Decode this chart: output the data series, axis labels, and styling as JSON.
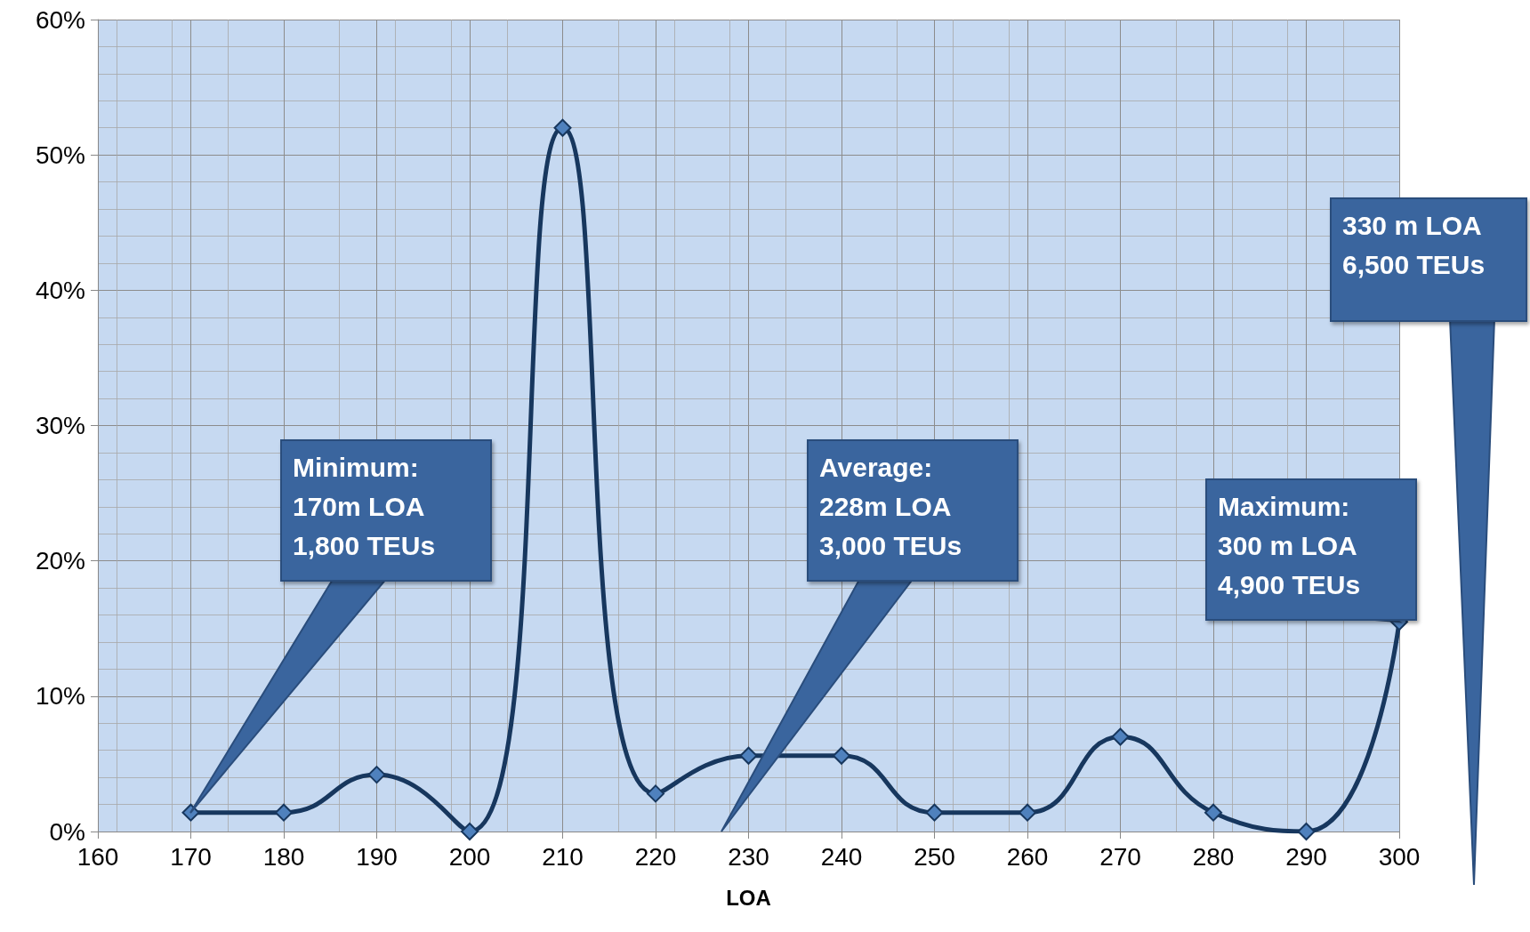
{
  "chart_data": {
    "type": "line",
    "xlabel": "LOA",
    "x": [
      170,
      180,
      190,
      200,
      210,
      220,
      230,
      240,
      250,
      260,
      270,
      280,
      290,
      300
    ],
    "series": [
      {
        "color": "#17375e",
        "values": [
          1.4,
          1.4,
          4.2,
          0,
          52,
          2.8,
          5.6,
          5.6,
          1.4,
          1.4,
          7,
          1.4,
          0,
          15.5
        ]
      }
    ],
    "xlim": [
      160,
      300
    ],
    "xticks": [
      160,
      170,
      180,
      190,
      200,
      210,
      220,
      230,
      240,
      250,
      260,
      270,
      280,
      290,
      300
    ],
    "ylim": [
      0,
      60
    ],
    "yticks": [
      {
        "value": 0,
        "label": "0%"
      },
      {
        "value": 10,
        "label": "10%"
      },
      {
        "value": 20,
        "label": "20%"
      },
      {
        "value": 30,
        "label": "30%"
      },
      {
        "value": 40,
        "label": "40%"
      },
      {
        "value": 50,
        "label": "50%"
      },
      {
        "value": 60,
        "label": "60%"
      }
    ],
    "grid": true,
    "marker": "diamond",
    "line_style": "solid",
    "annotations": [
      "Minimum:\n170m LOA\n1,800 TEUs",
      "Average:\n228m LOA\n3,000 TEUs",
      {
        "text": "Maximum:\n300 m LOA\n4,900 TEUs",
        "x": 300,
        "y": 15.5
      },
      "330 m LOA\n6,500 TEUs"
    ]
  }
}
